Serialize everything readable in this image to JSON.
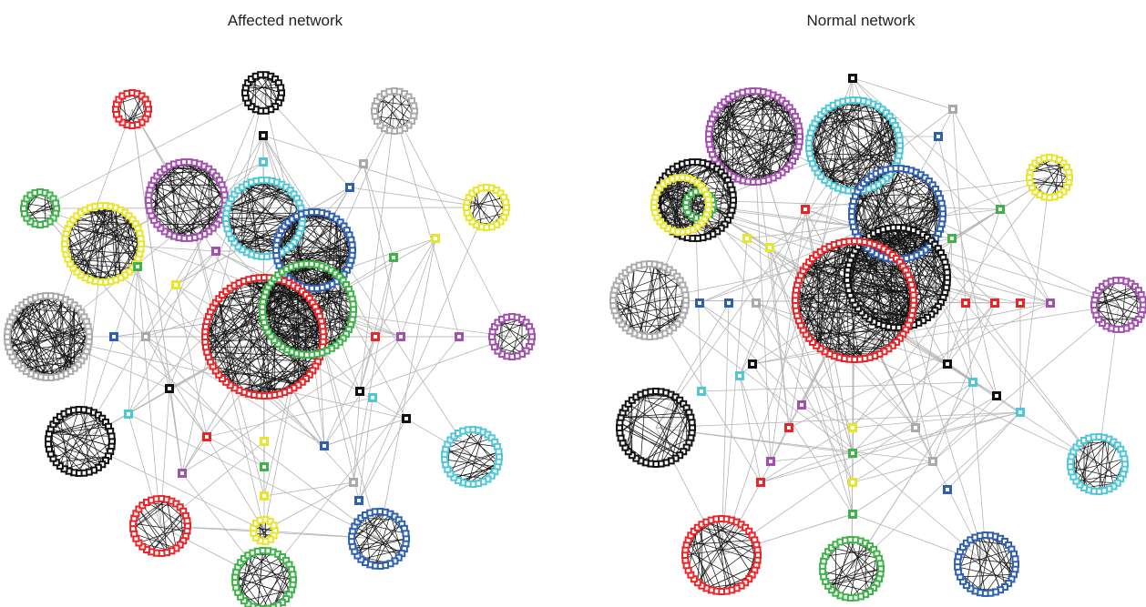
{
  "panels": [
    {
      "title": "Affected network"
    },
    {
      "title": "Normal network"
    }
  ]
}
